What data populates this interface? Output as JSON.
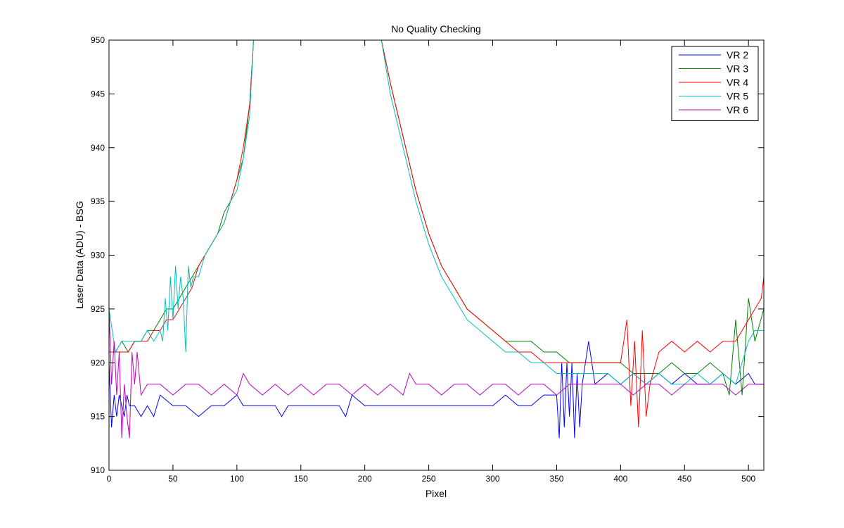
{
  "chart_data": {
    "type": "line",
    "title": "No Quality Checking",
    "xlabel": "Pixel",
    "ylabel": "Laser Data (ADU) - BSG",
    "xlim": [
      0,
      512
    ],
    "ylim": [
      910,
      950
    ],
    "xticks": [
      0,
      50,
      100,
      150,
      200,
      250,
      300,
      350,
      400,
      450,
      500
    ],
    "yticks": [
      910,
      915,
      920,
      925,
      930,
      935,
      940,
      945,
      950
    ],
    "grid": false,
    "legend_position": "top-right",
    "series": [
      {
        "name": "VR  2",
        "color": "#0000ff",
        "x": [
          0,
          2,
          4,
          6,
          8,
          10,
          12,
          14,
          16,
          20,
          25,
          30,
          35,
          40,
          50,
          60,
          70,
          80,
          90,
          100,
          105,
          110,
          120,
          130,
          135,
          140,
          150,
          160,
          170,
          180,
          185,
          190,
          200,
          210,
          220,
          230,
          240,
          250,
          260,
          270,
          280,
          290,
          300,
          310,
          320,
          330,
          340,
          350,
          352,
          354,
          356,
          358,
          360,
          362,
          364,
          366,
          368,
          370,
          375,
          380,
          390,
          400,
          410,
          420,
          430,
          440,
          450,
          460,
          470,
          480,
          490,
          500,
          505,
          512
        ],
        "values": [
          920,
          914,
          917,
          915,
          917,
          916,
          915,
          917,
          916,
          916,
          915,
          916,
          915,
          917,
          916,
          916,
          915,
          916,
          916,
          917,
          916,
          916,
          916,
          916,
          915,
          916,
          916,
          916,
          916,
          916,
          915,
          917,
          916,
          916,
          916,
          916,
          916,
          916,
          916,
          916,
          916,
          916,
          916,
          917,
          916,
          916,
          917,
          917,
          913,
          920,
          914,
          920,
          915,
          920,
          913,
          919,
          914,
          918,
          922,
          918,
          919,
          918,
          919,
          918,
          919,
          918,
          919,
          918,
          918,
          919,
          918,
          919,
          918,
          918
        ]
      },
      {
        "name": "VR  3",
        "color": "#008000",
        "x": [
          0,
          5,
          10,
          15,
          20,
          25,
          30,
          35,
          40,
          45,
          50,
          55,
          60,
          65,
          70,
          75,
          80,
          85,
          90,
          95,
          100,
          105,
          110,
          113,
          213,
          220,
          230,
          240,
          250,
          260,
          270,
          280,
          290,
          300,
          310,
          320,
          330,
          340,
          350,
          360,
          370,
          380,
          390,
          400,
          410,
          420,
          430,
          440,
          450,
          460,
          470,
          480,
          485,
          490,
          495,
          500,
          505,
          512
        ],
        "values": [
          921,
          921,
          922,
          921,
          922,
          922,
          923,
          923,
          924,
          925,
          925,
          926,
          927,
          928,
          929,
          930,
          931,
          932,
          934,
          935,
          937,
          939,
          944,
          950,
          950,
          946,
          941,
          936,
          932,
          929,
          927,
          925,
          924,
          923,
          922,
          922,
          922,
          921,
          921,
          920,
          920,
          920,
          920,
          920,
          919,
          919,
          919,
          920,
          919,
          919,
          920,
          919,
          917,
          924,
          917,
          926,
          922,
          925
        ]
      },
      {
        "name": "VR  4",
        "color": "#ff0000",
        "x": [
          0,
          5,
          10,
          15,
          20,
          25,
          30,
          35,
          40,
          45,
          50,
          55,
          60,
          65,
          70,
          75,
          80,
          85,
          90,
          95,
          100,
          105,
          110,
          113,
          213,
          220,
          230,
          240,
          250,
          260,
          270,
          280,
          290,
          300,
          310,
          320,
          330,
          340,
          350,
          360,
          370,
          380,
          390,
          400,
          405,
          408,
          411,
          414,
          417,
          420,
          423,
          430,
          440,
          450,
          460,
          470,
          480,
          490,
          500,
          505,
          510,
          512
        ],
        "values": [
          921,
          921,
          921,
          921,
          922,
          922,
          922,
          923,
          923,
          924,
          924,
          925,
          926,
          927,
          929,
          930,
          931,
          932,
          933,
          935,
          937,
          940,
          944,
          950,
          950,
          946,
          941,
          936,
          932,
          929,
          927,
          925,
          924,
          923,
          922,
          921,
          921,
          920,
          920,
          920,
          920,
          920,
          920,
          920,
          924,
          916,
          922,
          914,
          923,
          915,
          918,
          921,
          922,
          921,
          922,
          921,
          922,
          922,
          924,
          925,
          926,
          928
        ]
      },
      {
        "name": "VR  5",
        "color": "#00bfbf",
        "x": [
          0,
          5,
          10,
          15,
          20,
          25,
          30,
          35,
          40,
          42,
          44,
          46,
          48,
          50,
          52,
          54,
          56,
          58,
          60,
          62,
          64,
          66,
          70,
          75,
          80,
          85,
          90,
          95,
          100,
          105,
          110,
          113,
          213,
          220,
          230,
          240,
          250,
          260,
          270,
          280,
          290,
          300,
          310,
          320,
          330,
          340,
          350,
          360,
          370,
          380,
          390,
          400,
          410,
          420,
          430,
          440,
          450,
          460,
          470,
          480,
          490,
          500,
          505,
          512
        ],
        "values": [
          925,
          921,
          922,
          922,
          922,
          922,
          923,
          922,
          923,
          922,
          926,
          923,
          928,
          924,
          929,
          925,
          928,
          926,
          921,
          929,
          927,
          928,
          928,
          930,
          931,
          932,
          933,
          935,
          936,
          939,
          943,
          950,
          950,
          945,
          940,
          935,
          931,
          928,
          926,
          924,
          923,
          922,
          921,
          921,
          920,
          920,
          919,
          919,
          919,
          919,
          919,
          918,
          919,
          918,
          919,
          918,
          918,
          919,
          918,
          919,
          918,
          922,
          923,
          923
        ]
      },
      {
        "name": "VR  6",
        "color": "#bf00bf",
        "x": [
          0,
          2,
          4,
          6,
          8,
          10,
          12,
          14,
          16,
          18,
          20,
          22,
          25,
          30,
          40,
          50,
          60,
          70,
          80,
          90,
          100,
          105,
          110,
          120,
          130,
          140,
          150,
          160,
          170,
          180,
          190,
          200,
          210,
          220,
          230,
          235,
          240,
          250,
          260,
          270,
          280,
          290,
          300,
          310,
          320,
          330,
          340,
          350,
          360,
          370,
          380,
          390,
          400,
          410,
          420,
          430,
          440,
          450,
          460,
          470,
          480,
          490,
          500,
          505,
          512
        ],
        "values": [
          925,
          918,
          922,
          917,
          921,
          913,
          918,
          915,
          913,
          921,
          918,
          921,
          917,
          918,
          918,
          917,
          918,
          918,
          917,
          918,
          917,
          919,
          918,
          917,
          918,
          917,
          918,
          917,
          918,
          918,
          917,
          918,
          917,
          918,
          917,
          919,
          918,
          918,
          917,
          918,
          918,
          917,
          918,
          918,
          917,
          918,
          918,
          917,
          918,
          918,
          918,
          918,
          918,
          917,
          918,
          918,
          917,
          918,
          918,
          918,
          918,
          917,
          918,
          918,
          918
        ]
      }
    ]
  }
}
